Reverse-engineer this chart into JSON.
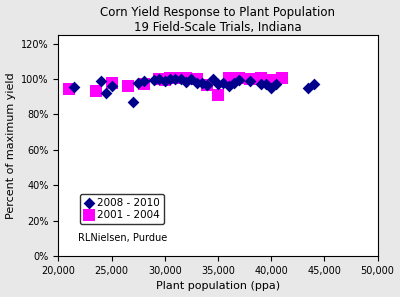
{
  "title_line1": "Corn Yield Response to Plant Population",
  "title_line2": "19 Field-Scale Trials, Indiana",
  "xlabel": "Plant population (ppa)",
  "ylabel": "Percent of maximum yield",
  "annotation": "RLNielsen, Purdue",
  "xlim": [
    20000,
    50000
  ],
  "ylim": [
    0,
    1.25
  ],
  "xticks": [
    20000,
    25000,
    30000,
    35000,
    40000,
    45000,
    50000
  ],
  "yticks": [
    0.0,
    0.2,
    0.4,
    0.6,
    0.8,
    1.0,
    1.2
  ],
  "series_2008_2010": {
    "label": "2008 - 2010",
    "color": "#00008B",
    "marker": "D",
    "markersize": 6,
    "x": [
      21500,
      24000,
      24500,
      25000,
      27000,
      27500,
      28000,
      29000,
      29500,
      30000,
      30500,
      31000,
      31500,
      32000,
      32500,
      33000,
      33500,
      34000,
      34500,
      35000,
      35500,
      36000,
      36500,
      37000,
      38000,
      39000,
      39500,
      40000,
      40500,
      43500,
      44000
    ],
    "y": [
      0.955,
      0.99,
      0.92,
      0.96,
      0.87,
      0.975,
      0.99,
      0.995,
      1.0,
      0.99,
      1.0,
      1.0,
      1.0,
      0.985,
      1.0,
      0.98,
      0.975,
      0.965,
      1.0,
      0.97,
      0.975,
      0.96,
      0.975,
      0.995,
      0.99,
      0.97,
      0.97,
      0.95,
      0.97,
      0.95,
      0.97
    ]
  },
  "series_2001_2004": {
    "label": "2001 - 2004",
    "color": "#FF00FF",
    "marker": "s",
    "markersize": 9,
    "x": [
      21000,
      23500,
      25000,
      26500,
      28000,
      29500,
      30000,
      30500,
      31000,
      32000,
      33000,
      34000,
      35000,
      36000,
      37000,
      38000,
      39000,
      40000,
      41000
    ],
    "y": [
      0.945,
      0.935,
      0.975,
      0.96,
      0.97,
      1.0,
      0.995,
      1.005,
      1.005,
      1.005,
      1.0,
      0.965,
      0.91,
      1.005,
      1.005,
      1.0,
      1.005,
      0.995,
      1.005
    ]
  },
  "fig_facecolor": "#e8e8e8",
  "ax_facecolor": "#ffffff",
  "title_fontsize": 8.5,
  "label_fontsize": 8,
  "tick_fontsize": 7,
  "legend_fontsize": 7.5
}
